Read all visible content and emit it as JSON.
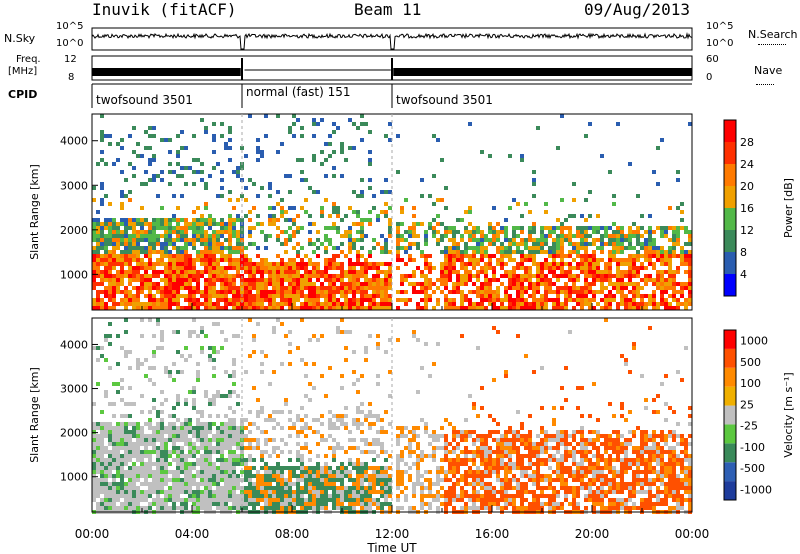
{
  "header": {
    "title": "Inuvik (fitACF)",
    "beam": "Beam 11",
    "date": "09/Aug/2013"
  },
  "top_panels": {
    "nsky_label": "N.Sky",
    "nsky_ticks": [
      "10^5",
      "10^0"
    ],
    "nsearch_label": "N.Search",
    "nsearch_ticks": [
      "10^5",
      "10^0"
    ],
    "freq_label_1": "Freq.",
    "freq_label_2": "[MHz]",
    "freq_ticks": [
      "12",
      "8"
    ],
    "nave_label": "Nave",
    "nave_ticks": [
      "60",
      "0"
    ],
    "cpid_label": "CPID",
    "cpid_segments": [
      {
        "label": "twofsound 3501",
        "start_h": 0,
        "end_h": 6.0
      },
      {
        "label": "normal (fast) 151",
        "start_h": 6.0,
        "end_h": 12.0
      },
      {
        "label": "twofsound 3501",
        "start_h": 12.0,
        "end_h": 24.0
      }
    ]
  },
  "colors": {
    "power_scale": [
      "#0000ff",
      "#2a5db0",
      "#3b8a5a",
      "#52b848",
      "#f0a000",
      "#ff7a00",
      "#ff3000",
      "#ff0000"
    ],
    "velocity_scale": [
      "#1e3c9c",
      "#2e5fb4",
      "#3a8a5a",
      "#5cc840",
      "#c0c0c0",
      "#f0b000",
      "#ff8a00",
      "#ff5000",
      "#ff0000"
    ]
  },
  "chart_data": [
    {
      "type": "heatmap",
      "name": "power",
      "ylabel": "Slant Range [km]",
      "xlim": [
        0,
        24
      ],
      "ylim": [
        200,
        4600
      ],
      "yticks": [
        "1000",
        "2000",
        "3000",
        "4000"
      ],
      "colorbar_label": "Power [dB]",
      "colorbar_ticks": [
        "28",
        "24",
        "20",
        "16",
        "12",
        "8",
        "4"
      ],
      "colorbar_range": [
        0,
        32
      ]
    },
    {
      "type": "heatmap",
      "name": "velocity",
      "ylabel": "Slant Range [km]",
      "xlabel": "Time UT",
      "xlim": [
        0,
        24
      ],
      "ylim": [
        200,
        4600
      ],
      "yticks": [
        "1000",
        "2000",
        "3000",
        "4000"
      ],
      "xticks": [
        "00:00",
        "04:00",
        "08:00",
        "12:00",
        "16:00",
        "20:00",
        "00:00"
      ],
      "colorbar_label": "Velocity [m s⁻¹]",
      "colorbar_ticks": [
        "1000",
        "500",
        "100",
        "25",
        "-25",
        "-100",
        "-500",
        "-1000"
      ]
    }
  ]
}
